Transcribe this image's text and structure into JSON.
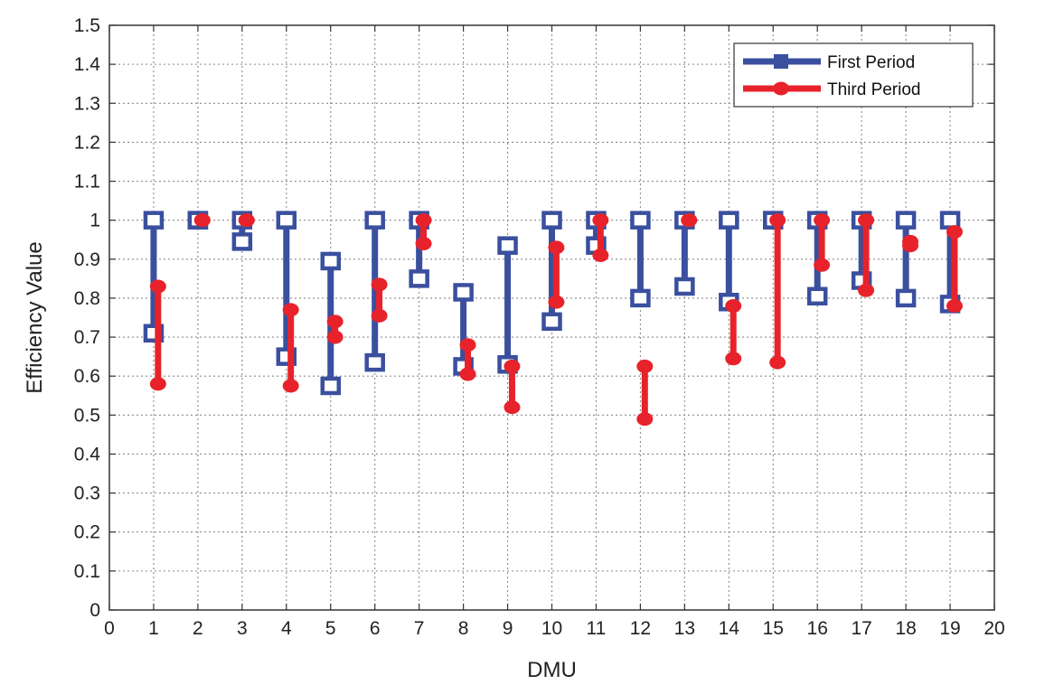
{
  "chart_data": {
    "type": "interval",
    "title": "",
    "xlabel": "DMU",
    "ylabel": "Efficiency Value",
    "xlim": [
      0,
      20
    ],
    "ylim": [
      0,
      1.5
    ],
    "xticks": [
      "0",
      "1",
      "2",
      "3",
      "4",
      "5",
      "6",
      "7",
      "8",
      "9",
      "10",
      "11",
      "12",
      "13",
      "14",
      "15",
      "16",
      "17",
      "18",
      "19",
      "20"
    ],
    "yticks": [
      "0",
      "0.1",
      "0.2",
      "0.3",
      "0.4",
      "0.5",
      "0.6",
      "0.7",
      "0.8",
      "0.9",
      "1",
      "1.1",
      "1.2",
      "1.3",
      "1.4",
      "1.5"
    ],
    "grid": true,
    "legend_position": "top-right",
    "series": [
      {
        "name": "First Period",
        "color": "#3a4f9e",
        "marker": "square",
        "x_offset": 0,
        "ranges": [
          {
            "x": 1,
            "low": 0.71,
            "high": 1.0
          },
          {
            "x": 2,
            "low": 1.0,
            "high": 1.0
          },
          {
            "x": 3,
            "low": 0.945,
            "high": 1.0
          },
          {
            "x": 4,
            "low": 0.65,
            "high": 1.0
          },
          {
            "x": 5,
            "low": 0.575,
            "high": 0.895
          },
          {
            "x": 6,
            "low": 0.635,
            "high": 1.0
          },
          {
            "x": 7,
            "low": 0.85,
            "high": 1.0
          },
          {
            "x": 8,
            "low": 0.625,
            "high": 0.815
          },
          {
            "x": 9,
            "low": 0.63,
            "high": 0.935
          },
          {
            "x": 10,
            "low": 0.74,
            "high": 1.0
          },
          {
            "x": 11,
            "low": 0.935,
            "high": 1.0
          },
          {
            "x": 12,
            "low": 0.8,
            "high": 1.0
          },
          {
            "x": 13,
            "low": 0.83,
            "high": 1.0
          },
          {
            "x": 14,
            "low": 0.79,
            "high": 1.0
          },
          {
            "x": 15,
            "low": 1.0,
            "high": 1.0
          },
          {
            "x": 16,
            "low": 0.805,
            "high": 1.0
          },
          {
            "x": 17,
            "low": 0.845,
            "high": 1.0
          },
          {
            "x": 18,
            "low": 0.8,
            "high": 1.0
          },
          {
            "x": 19,
            "low": 0.785,
            "high": 1.0
          }
        ]
      },
      {
        "name": "Third Period",
        "color": "#e8222a",
        "marker": "circle",
        "x_offset": 0.1,
        "ranges": [
          {
            "x": 1,
            "low": 0.58,
            "high": 0.83
          },
          {
            "x": 2,
            "low": 1.0,
            "high": 1.0
          },
          {
            "x": 3,
            "low": 1.0,
            "high": 1.0
          },
          {
            "x": 4,
            "low": 0.575,
            "high": 0.77
          },
          {
            "x": 5,
            "low": 0.7,
            "high": 0.74
          },
          {
            "x": 6,
            "low": 0.755,
            "high": 0.835
          },
          {
            "x": 7,
            "low": 0.94,
            "high": 1.0
          },
          {
            "x": 8,
            "low": 0.605,
            "high": 0.68
          },
          {
            "x": 9,
            "low": 0.52,
            "high": 0.625
          },
          {
            "x": 10,
            "low": 0.79,
            "high": 0.93
          },
          {
            "x": 11,
            "low": 0.91,
            "high": 1.0
          },
          {
            "x": 12,
            "low": 0.49,
            "high": 0.625
          },
          {
            "x": 13,
            "low": 1.0,
            "high": 1.0
          },
          {
            "x": 14,
            "low": 0.645,
            "high": 0.78
          },
          {
            "x": 15,
            "low": 0.635,
            "high": 1.0
          },
          {
            "x": 16,
            "low": 0.885,
            "high": 1.0
          },
          {
            "x": 17,
            "low": 0.82,
            "high": 1.0
          },
          {
            "x": 18,
            "low": 0.935,
            "high": 0.945
          },
          {
            "x": 19,
            "low": 0.78,
            "high": 0.97
          }
        ]
      }
    ]
  }
}
